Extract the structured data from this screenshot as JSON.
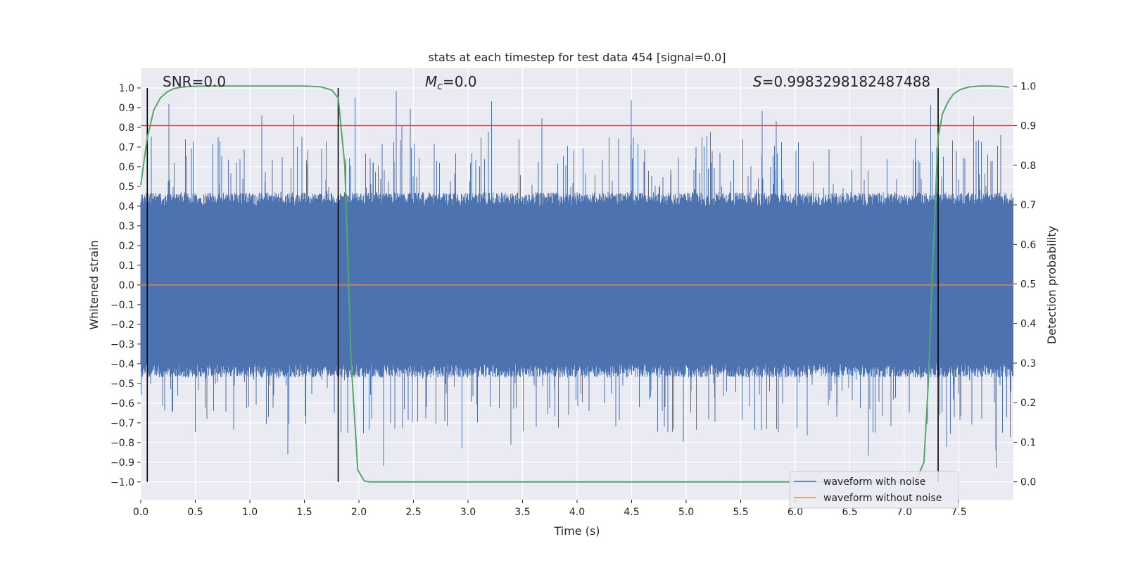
{
  "chart_data": {
    "type": "line",
    "title": "stats at each timestep for test data 454 [signal=0.0]",
    "xlabel": "Time (s)",
    "ylabel_left": "Whitened strain",
    "ylabel_right": "Detection probability",
    "xlim": [
      0.0,
      8.0
    ],
    "ylim_left": [
      -1.09,
      1.1
    ],
    "ylim_right": [
      -0.045,
      1.045
    ],
    "x_ticks": [
      "0.0",
      "0.5",
      "1.0",
      "1.5",
      "2.0",
      "2.5",
      "3.0",
      "3.5",
      "4.0",
      "4.5",
      "5.0",
      "5.5",
      "6.0",
      "6.5",
      "7.0",
      "7.5"
    ],
    "y_ticks_left": [
      "1.0",
      "0.9",
      "0.8",
      "0.7",
      "0.6",
      "0.5",
      "0.4",
      "0.3",
      "0.2",
      "0.1",
      "0.0",
      "−0.1",
      "−0.2",
      "−0.3",
      "−0.4",
      "−0.5",
      "−0.6",
      "−0.7",
      "−0.8",
      "−0.9",
      "−1.0"
    ],
    "y_ticks_right": [
      "1.0",
      "0.9",
      "0.8",
      "0.7",
      "0.6",
      "0.5",
      "0.4",
      "0.3",
      "0.2",
      "0.1",
      "0.0"
    ],
    "annotations": {
      "snr_prefix": "SNR",
      "snr_value": "=0.0",
      "mc_symbol": "M",
      "mc_sub": "c",
      "mc_value": "=0.0",
      "s_symbol": "S",
      "s_value": "=0.9983298182487488"
    },
    "threshold_right": 0.9,
    "threshold_color": "#c44e52",
    "vlines_x": [
      0.06,
      1.81,
      7.31
    ],
    "detection_probability": {
      "x": [
        0.0,
        0.06,
        0.12,
        0.18,
        0.24,
        0.3,
        0.36,
        0.45,
        0.6,
        0.9,
        1.2,
        1.5,
        1.65,
        1.75,
        1.81,
        1.87,
        1.93,
        1.99,
        2.05,
        2.1,
        2.2,
        3.0,
        4.0,
        5.0,
        6.0,
        6.5,
        7.0,
        7.12,
        7.18,
        7.22,
        7.26,
        7.31,
        7.35,
        7.4,
        7.45,
        7.52,
        7.6,
        7.7,
        7.8,
        7.9,
        7.96
      ],
      "y": [
        0.75,
        0.87,
        0.94,
        0.97,
        0.985,
        0.993,
        0.997,
        0.999,
        1.0,
        1.0,
        1.0,
        1.0,
        0.998,
        0.99,
        0.97,
        0.8,
        0.3,
        0.03,
        0.002,
        0.0,
        0.0,
        0.0,
        0.0,
        0.0,
        0.0,
        0.0,
        0.0,
        0.01,
        0.05,
        0.25,
        0.55,
        0.87,
        0.93,
        0.96,
        0.98,
        0.992,
        0.998,
        1.0,
        1.0,
        0.999,
        0.997
      ],
      "color": "#55a868"
    },
    "series": [
      {
        "name": "waveform with noise",
        "color": "#4c72b0"
      },
      {
        "name": "waveform without noise",
        "color": "#dd8452"
      }
    ],
    "noise_envelope": {
      "core_amplitude": 0.47,
      "spike_max": 1.0,
      "spike_min": -0.99
    }
  }
}
